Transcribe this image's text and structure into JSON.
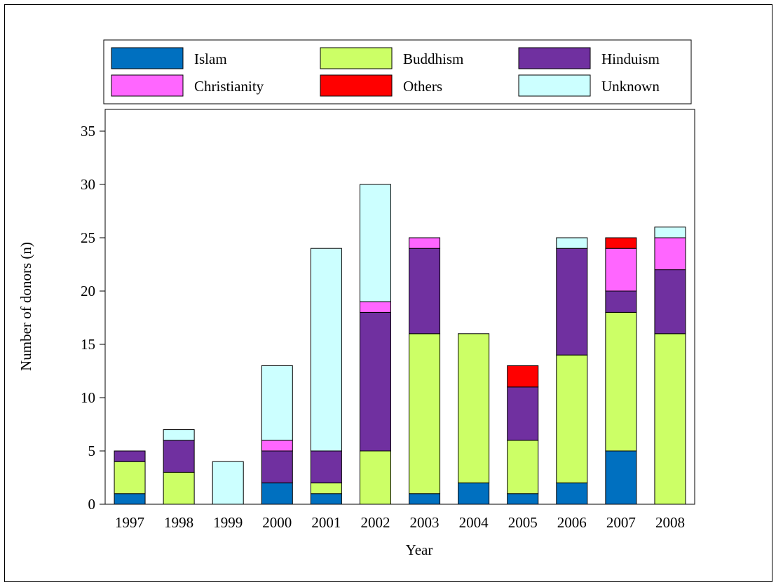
{
  "chart_data": {
    "type": "bar",
    "stacked": true,
    "title": "",
    "xlabel": "Year",
    "ylabel": "Number of donors (n)",
    "ylim": [
      0,
      37
    ],
    "yticks": [
      0,
      5,
      10,
      15,
      20,
      25,
      30,
      35
    ],
    "grid": false,
    "legend_position": "top",
    "categories": [
      "1997",
      "1998",
      "1999",
      "2000",
      "2001",
      "2002",
      "2003",
      "2004",
      "2005",
      "2006",
      "2007",
      "2008"
    ],
    "series": [
      {
        "name": "Islam",
        "color": "#0070c0",
        "values": [
          1,
          0,
          0,
          2,
          1,
          0,
          1,
          2,
          1,
          2,
          5,
          0
        ]
      },
      {
        "name": "Buddhism",
        "color": "#ccff66",
        "values": [
          3,
          3,
          0,
          0,
          1,
          5,
          15,
          14,
          5,
          12,
          13,
          16
        ]
      },
      {
        "name": "Hinduism",
        "color": "#7030a0",
        "values": [
          1,
          3,
          0,
          3,
          3,
          13,
          8,
          0,
          5,
          10,
          2,
          6
        ]
      },
      {
        "name": "Christianity",
        "color": "#ff66ff",
        "values": [
          0,
          0,
          0,
          1,
          0,
          1,
          1,
          0,
          0,
          0,
          4,
          3
        ]
      },
      {
        "name": "Others",
        "color": "#ff0000",
        "values": [
          0,
          0,
          0,
          0,
          0,
          0,
          0,
          0,
          2,
          0,
          1,
          0
        ]
      },
      {
        "name": "Unknown",
        "color": "#ccffff",
        "values": [
          0,
          1,
          4,
          7,
          19,
          11,
          0,
          0,
          0,
          1,
          0,
          1
        ]
      }
    ]
  }
}
